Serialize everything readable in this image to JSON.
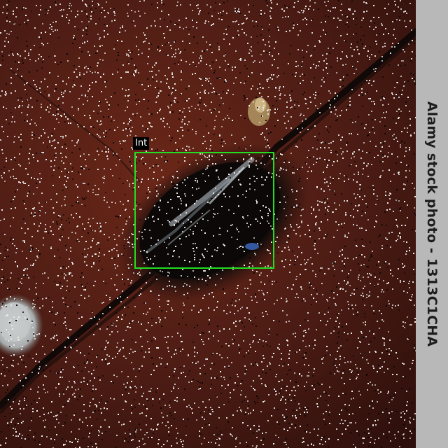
{
  "detection": {
    "label": "Int",
    "box_color": "#22dd22"
  },
  "watermark": {
    "text": "Alamy stock photo - 1313C1CHA"
  },
  "scene": {
    "background": "dark reddish-brown stone surface with diagonal crack",
    "subject": "dark stain with pale streaks near the crack"
  }
}
